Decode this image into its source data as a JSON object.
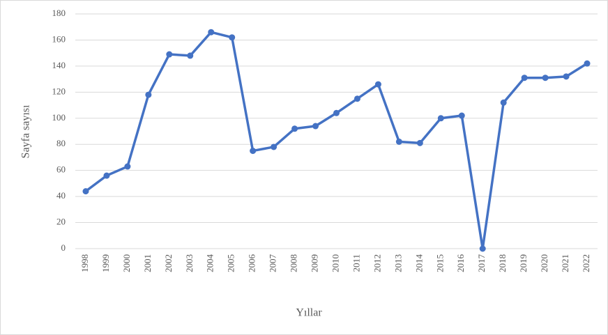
{
  "chart_data": {
    "type": "line",
    "x_label": "Yıllar",
    "y_label": "Sayfa sayısı",
    "categories": [
      "1998",
      "1999",
      "2000",
      "2001",
      "2002",
      "2003",
      "2004",
      "2005",
      "2006",
      "2007",
      "2008",
      "2009",
      "2010",
      "2011",
      "2012",
      "2013",
      "2014",
      "2015",
      "2016",
      "2017",
      "2018",
      "2019",
      "2020",
      "2021",
      "2022"
    ],
    "series": [
      {
        "color": "#4472c4",
        "values": [
          44,
          56,
          63,
          118,
          149,
          148,
          166,
          162,
          75,
          78,
          92,
          94,
          104,
          115,
          126,
          82,
          81,
          100,
          102,
          0,
          112,
          131,
          131,
          132,
          142
        ]
      }
    ],
    "ylim": [
      0,
      180
    ],
    "yticks": [
      0,
      20,
      40,
      60,
      80,
      100,
      120,
      140,
      160,
      180
    ],
    "grid": true
  }
}
